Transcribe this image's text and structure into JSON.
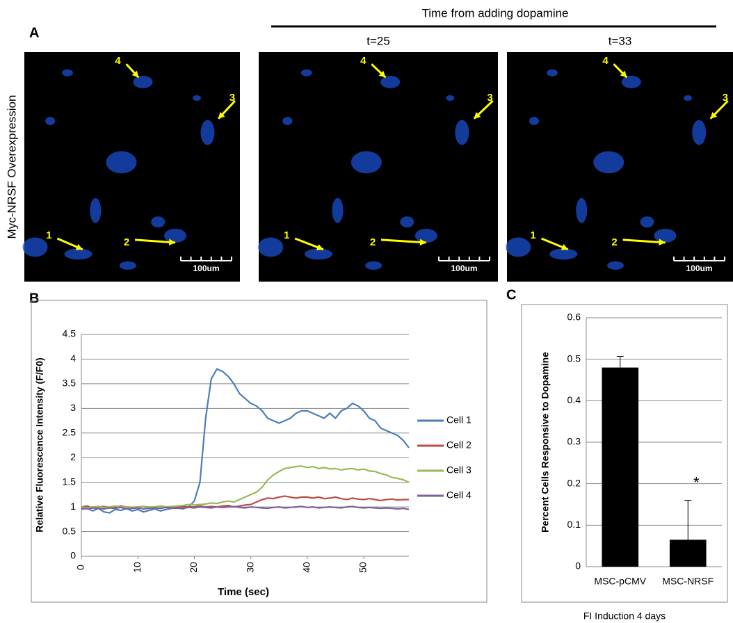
{
  "panel_labels": [
    "A",
    "B",
    "C"
  ],
  "header": "Time from adding dopamine",
  "row_label": "Myc-NRSF Overexpression",
  "images": [
    {
      "markers": [
        "1",
        "2",
        "3",
        "4"
      ],
      "scale_bar": "100um"
    },
    {
      "time": "t=25",
      "markers": [
        "1",
        "2",
        "3",
        "4"
      ],
      "scale_bar": "100um"
    },
    {
      "time": "t=33",
      "markers": [
        "1",
        "2",
        "3",
        "4"
      ],
      "scale_bar": "100um"
    }
  ],
  "chart_data": [
    {
      "type": "line",
      "x_label": "Time (sec)",
      "y_label": "Relative Fluorescence Intensity (F/F0)",
      "x": [
        0,
        1,
        2,
        3,
        4,
        5,
        6,
        7,
        8,
        9,
        10,
        11,
        12,
        13,
        14,
        15,
        16,
        17,
        18,
        19,
        20,
        21,
        22,
        23,
        24,
        25,
        26,
        27,
        28,
        29,
        30,
        31,
        32,
        33,
        34,
        35,
        36,
        37,
        38,
        39,
        40,
        41,
        42,
        43,
        44,
        45,
        46,
        47,
        48,
        49,
        50,
        51,
        52,
        53,
        54,
        55,
        56,
        57,
        58
      ],
      "xlim": [
        0,
        58
      ],
      "xticks": [
        0,
        10,
        20,
        30,
        40,
        50
      ],
      "ylim": [
        0,
        4.5
      ],
      "yticks": [
        0,
        0.5,
        1,
        1.5,
        2,
        2.5,
        3,
        3.5,
        4,
        4.5
      ],
      "grid": true,
      "legend": "right",
      "series": [
        {
          "name": "Cell 1",
          "color": "#4a7ebb",
          "values": [
            0.95,
            0.98,
            0.92,
            0.97,
            0.9,
            0.88,
            0.95,
            0.93,
            0.97,
            0.92,
            0.95,
            0.9,
            0.93,
            0.96,
            0.92,
            0.95,
            0.97,
            0.98,
            0.96,
            1.0,
            1.12,
            1.5,
            2.8,
            3.6,
            3.8,
            3.75,
            3.65,
            3.5,
            3.3,
            3.2,
            3.1,
            3.05,
            2.95,
            2.8,
            2.75,
            2.7,
            2.75,
            2.8,
            2.9,
            2.95,
            2.95,
            2.9,
            2.85,
            2.8,
            2.9,
            2.8,
            2.95,
            3.0,
            3.1,
            3.05,
            2.95,
            2.8,
            2.75,
            2.6,
            2.55,
            2.5,
            2.45,
            2.35,
            2.2
          ]
        },
        {
          "name": "Cell 2",
          "color": "#be4b48",
          "values": [
            1.0,
            1.02,
            0.98,
            1.0,
            1.01,
            0.99,
            1.0,
            1.02,
            1.0,
            0.99,
            1.0,
            1.01,
            0.98,
            1.0,
            1.02,
            1.0,
            0.99,
            1.0,
            1.01,
            1.0,
            1.0,
            1.02,
            1.0,
            1.01,
            1.0,
            1.02,
            1.03,
            1.0,
            1.02,
            1.04,
            1.05,
            1.1,
            1.15,
            1.18,
            1.17,
            1.2,
            1.22,
            1.2,
            1.18,
            1.2,
            1.2,
            1.18,
            1.2,
            1.17,
            1.18,
            1.2,
            1.17,
            1.15,
            1.18,
            1.16,
            1.15,
            1.17,
            1.15,
            1.13,
            1.15,
            1.16,
            1.14,
            1.15,
            1.15
          ]
        },
        {
          "name": "Cell 3",
          "color": "#98b954",
          "values": [
            1.0,
            0.98,
            1.0,
            1.01,
            0.99,
            1.0,
            1.02,
            1.0,
            1.0,
            0.98,
            1.0,
            1.01,
            1.0,
            1.0,
            1.02,
            1.0,
            1.01,
            1.02,
            1.03,
            1.05,
            1.04,
            1.05,
            1.06,
            1.08,
            1.07,
            1.1,
            1.12,
            1.1,
            1.15,
            1.2,
            1.25,
            1.3,
            1.4,
            1.55,
            1.65,
            1.72,
            1.78,
            1.8,
            1.82,
            1.83,
            1.8,
            1.82,
            1.78,
            1.8,
            1.77,
            1.78,
            1.75,
            1.77,
            1.78,
            1.75,
            1.77,
            1.73,
            1.72,
            1.68,
            1.65,
            1.6,
            1.58,
            1.55,
            1.5
          ]
        },
        {
          "name": "Cell 4",
          "color": "#7d60a0",
          "values": [
            0.97,
            0.96,
            0.98,
            0.97,
            0.96,
            0.98,
            0.97,
            0.99,
            0.96,
            0.97,
            0.98,
            0.96,
            0.97,
            0.98,
            0.97,
            0.99,
            0.98,
            0.97,
            0.98,
            0.99,
            0.98,
            1.0,
            0.99,
            0.98,
            1.0,
            0.99,
            1.0,
            1.01,
            0.99,
            0.98,
            1.0,
            0.99,
            0.98,
            0.97,
            0.99,
            1.0,
            0.98,
            0.99,
            1.0,
            1.01,
            0.99,
            1.0,
            0.98,
            0.99,
            1.0,
            0.99,
            0.98,
            1.0,
            1.01,
            0.99,
            0.98,
            0.99,
            0.98,
            0.97,
            0.98,
            0.97,
            0.96,
            0.97,
            0.95
          ]
        }
      ]
    },
    {
      "type": "bar",
      "x_label": "FI Induction 4 days",
      "y_label": "Percent Cells Responsive to Dopamine",
      "categories": [
        "MSC-pCMV",
        "MSC-NRSF"
      ],
      "values": [
        0.48,
        0.065
      ],
      "errors": [
        0.027,
        0.095
      ],
      "color": "#000000",
      "ylim": [
        0,
        0.6
      ],
      "yticks": [
        0,
        0.1,
        0.2,
        0.3,
        0.4,
        0.5,
        0.6
      ],
      "grid": true,
      "annotations": [
        {
          "text": "*",
          "category": 1,
          "y": 0.2
        }
      ]
    }
  ]
}
